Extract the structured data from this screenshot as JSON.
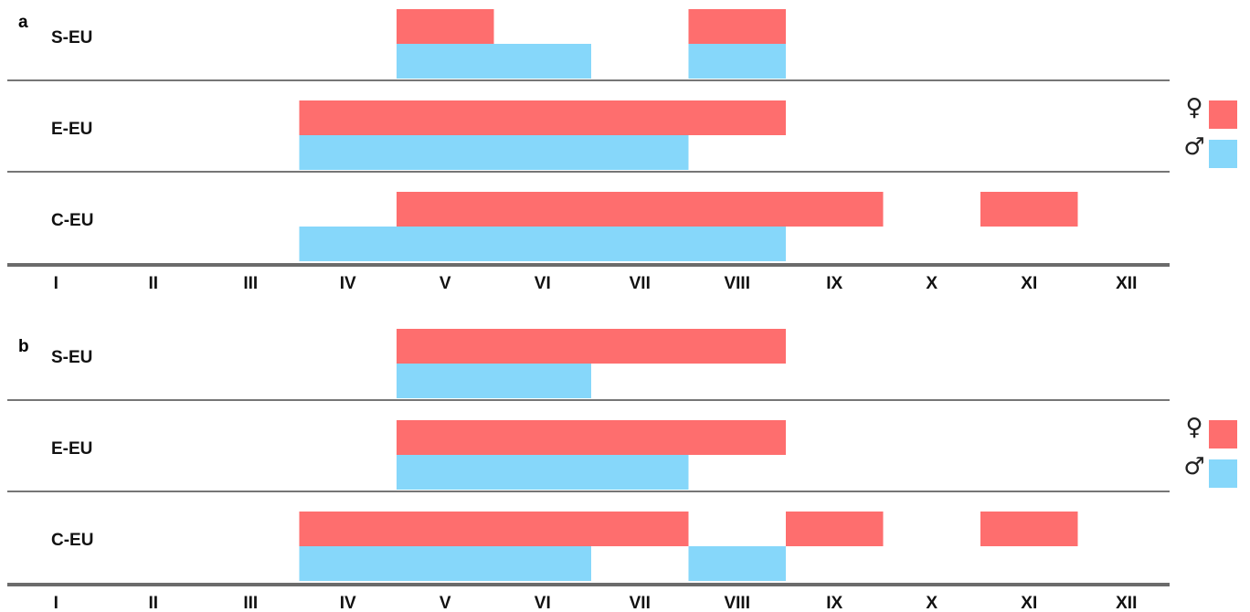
{
  "colors": {
    "female": "#fe6e6e",
    "male": "#86d7fa",
    "divider": "#767676",
    "axis": "#6b6b6b"
  },
  "chart_data": [
    {
      "type": "bar",
      "panel_label": "a",
      "orientation": "horizontal-ranges",
      "months": [
        "I",
        "II",
        "III",
        "IV",
        "V",
        "VI",
        "VII",
        "VIII",
        "IX",
        "X",
        "XI",
        "XII"
      ],
      "legend": {
        "female_symbol": "♀",
        "male_symbol": "♂",
        "placement": "right"
      },
      "regions": [
        {
          "name": "S-EU",
          "female": [
            {
              "start": "V",
              "end": "V"
            },
            {
              "start": "VIII",
              "end": "VIII"
            }
          ],
          "male": [
            {
              "start": "V",
              "end": "VI"
            },
            {
              "start": "VIII",
              "end": "VIII"
            }
          ]
        },
        {
          "name": "E-EU",
          "female": [
            {
              "start": "IV",
              "end": "VIII"
            }
          ],
          "male": [
            {
              "start": "IV",
              "end": "VII"
            }
          ]
        },
        {
          "name": "C-EU",
          "female": [
            {
              "start": "V",
              "end": "IX"
            },
            {
              "start": "XI",
              "end": "XI"
            }
          ],
          "male": [
            {
              "start": "IV",
              "end": "VIII"
            }
          ]
        }
      ]
    },
    {
      "type": "bar",
      "panel_label": "b",
      "orientation": "horizontal-ranges",
      "months": [
        "I",
        "II",
        "III",
        "IV",
        "V",
        "VI",
        "VII",
        "VIII",
        "IX",
        "X",
        "XI",
        "XII"
      ],
      "legend": {
        "female_symbol": "♀",
        "male_symbol": "♂",
        "placement": "right"
      },
      "regions": [
        {
          "name": "S-EU",
          "female": [
            {
              "start": "V",
              "end": "VIII"
            }
          ],
          "male": [
            {
              "start": "V",
              "end": "VI"
            }
          ]
        },
        {
          "name": "E-EU",
          "female": [
            {
              "start": "V",
              "end": "VIII"
            }
          ],
          "male": [
            {
              "start": "V",
              "end": "VII"
            }
          ]
        },
        {
          "name": "C-EU",
          "female": [
            {
              "start": "IV",
              "end": "VII"
            },
            {
              "start": "IX",
              "end": "IX"
            },
            {
              "start": "XI",
              "end": "XI"
            }
          ],
          "male": [
            {
              "start": "IV",
              "end": "VI"
            },
            {
              "start": "VIII",
              "end": "VIII"
            }
          ]
        }
      ]
    }
  ]
}
